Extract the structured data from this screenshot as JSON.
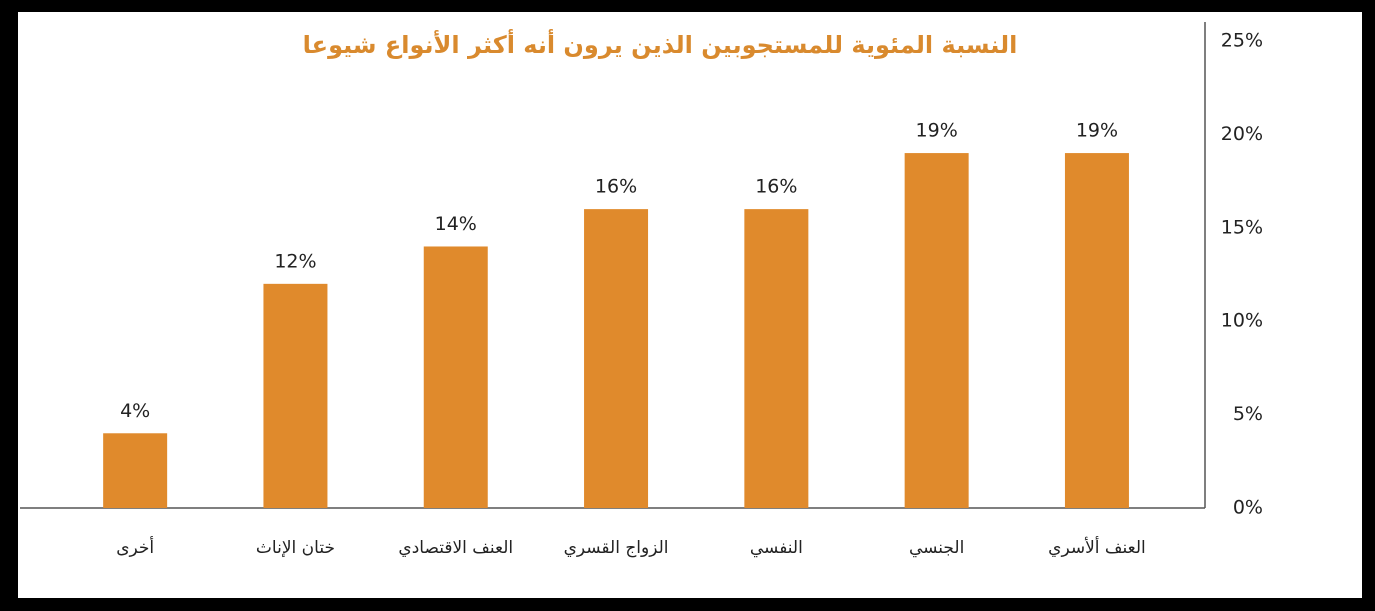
{
  "chart_data": {
    "type": "bar",
    "title": "النسبة المئوية للمستجوبين الذين يرون أنه أكثر الأنواع شيوعا",
    "categories": [
      "أخرى",
      "ختان الإناث",
      "العنف الاقتصادي",
      "الزواج القسري",
      "النفسي",
      "الجنسي",
      "العنف ألأسري"
    ],
    "values": [
      4,
      12,
      14,
      16,
      16,
      19,
      19
    ],
    "value_labels": [
      "4%",
      "12%",
      "14%",
      "16%",
      "16%",
      "19%",
      "19%"
    ],
    "color": "#e08a2c",
    "ylim": [
      0,
      25
    ],
    "yticks": [
      {
        "value": 0,
        "label": "0%"
      },
      {
        "value": 5,
        "label": "5%"
      },
      {
        "value": 10,
        "label": "10%"
      },
      {
        "value": 15,
        "label": "15%"
      },
      {
        "value": 20,
        "label": "20%"
      },
      {
        "value": 25,
        "label": "25%"
      }
    ],
    "y_axis_position": "right",
    "grid": false
  }
}
